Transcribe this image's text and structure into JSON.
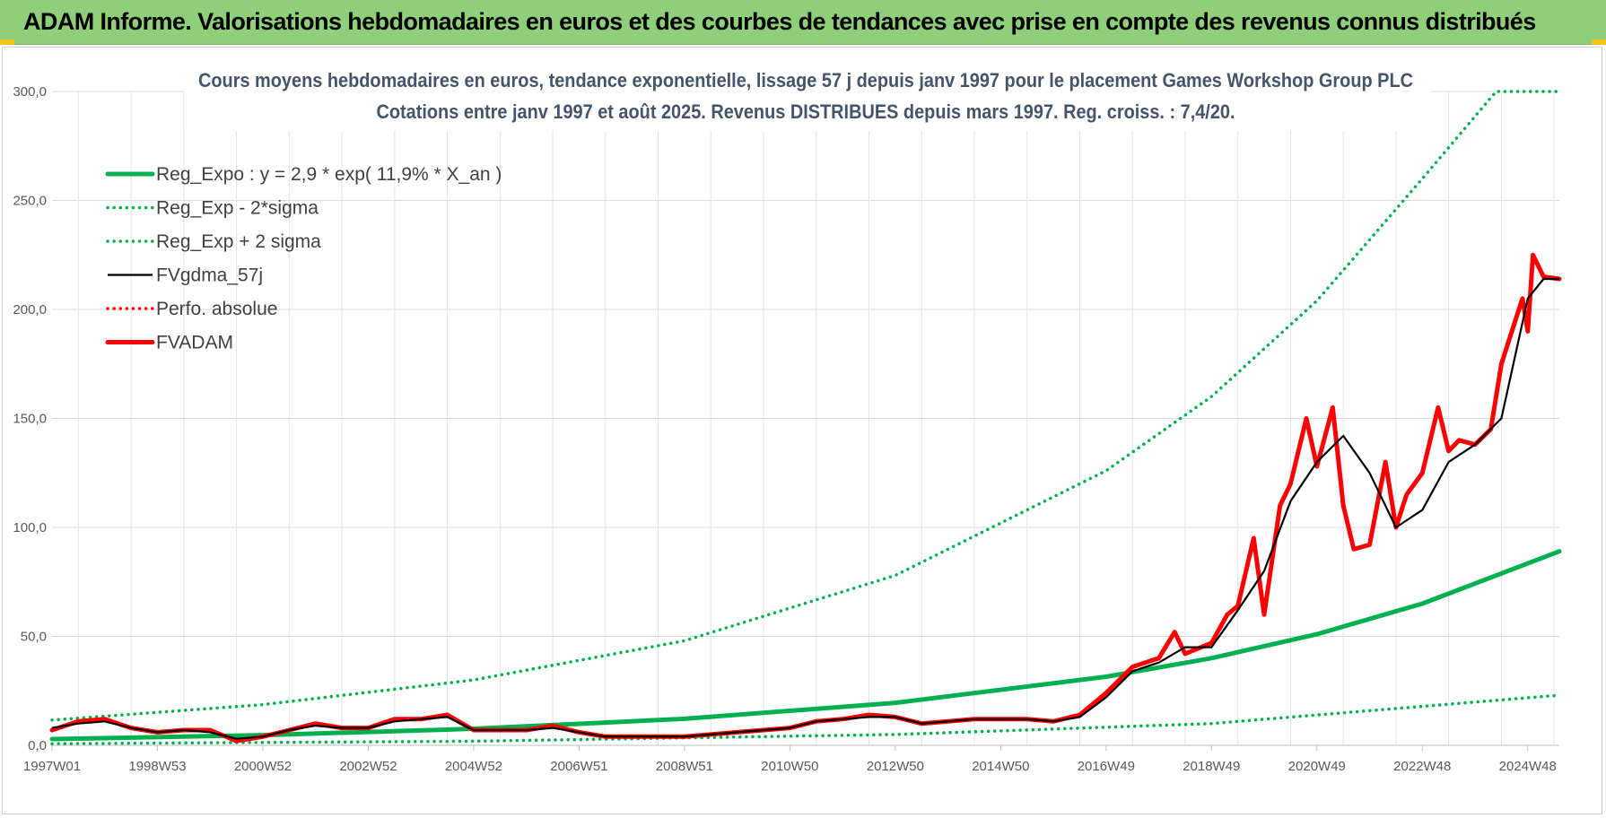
{
  "header": {
    "title": "ADAM Informe. Valorisations hebdomadaires en euros et des courbes de tendances avec prise en compte des revenus connus distribués"
  },
  "colors": {
    "banner": "#8fcf7a",
    "reg_green": "#00b050",
    "fvgdma": "#000000",
    "fvadam": "#ff0000",
    "title_text": "#44546a"
  },
  "chart_data": {
    "type": "line",
    "title_line1": "Cours moyens hebdomadaires en euros, tendance exponentielle, lissage 57 j depuis janv 1997 pour le placement Games Workshop Group PLC",
    "title_line2": "Cotations entre janv 1997 et août 2025. Revenus DISTRIBUES depuis mars 1997. Reg. croiss. : 7,4/20.",
    "xlabel": "",
    "ylabel": "",
    "ylim": [
      0,
      300
    ],
    "xlim": [
      1997.0,
      2025.6
    ],
    "y_ticks": [
      "0,0",
      "50,0",
      "100,0",
      "150,0",
      "200,0",
      "250,0",
      "300,0"
    ],
    "y_tick_values": [
      0,
      50,
      100,
      150,
      200,
      250,
      300
    ],
    "x_ticks": [
      "1997W01",
      "1998W53",
      "2000W52",
      "2002W52",
      "2004W52",
      "2006W51",
      "2008W51",
      "2010W50",
      "2012W50",
      "2014W50",
      "2016W49",
      "2018W49",
      "2020W49",
      "2022W48",
      "2024W48"
    ],
    "x_tick_values": [
      1997.0,
      1999.0,
      2001.0,
      2003.0,
      2005.0,
      2007.0,
      2009.0,
      2011.0,
      2013.0,
      2015.0,
      2017.0,
      2019.0,
      2021.0,
      2023.0,
      2025.0
    ],
    "grid": true,
    "legend_position": "top-left",
    "series": [
      {
        "name": "Reg_Expo : y = 2,9 * exp( 11,9% *  X_an )",
        "style": "solid-thick",
        "color": "#00b050",
        "x": [
          1997.0,
          2001.0,
          2005.0,
          2009.0,
          2013.0,
          2017.0,
          2019.0,
          2021.0,
          2023.0,
          2025.6
        ],
        "y": [
          2.9,
          4.7,
          7.6,
          12.2,
          19.5,
          31.5,
          40,
          51,
          65,
          89
        ]
      },
      {
        "name": "Reg_Exp - 2*sigma",
        "style": "dotted",
        "color": "#00b050",
        "x": [
          1997.0,
          2005.0,
          2013.0,
          2019.0,
          2025.6
        ],
        "y": [
          0.74,
          1.9,
          5.0,
          10,
          23
        ]
      },
      {
        "name": "Reg_Exp + 2 sigma",
        "style": "dotted",
        "color": "#00b050",
        "x": [
          1997.0,
          2001.0,
          2005.0,
          2009.0,
          2013.0,
          2017.0,
          2019.0,
          2021.0,
          2023.0,
          2024.4,
          2025.6
        ],
        "y": [
          11.6,
          18.7,
          30,
          48,
          78,
          126,
          160,
          204,
          260,
          300,
          300
        ]
      },
      {
        "name": "FVgdma_57j",
        "style": "solid-thin",
        "color": "#000000",
        "x": [
          1997.0,
          1997.5,
          1998.0,
          1998.5,
          1999.0,
          1999.5,
          2000.0,
          2000.5,
          2001.0,
          2001.5,
          2002.0,
          2002.5,
          2003.0,
          2003.5,
          2004.0,
          2004.5,
          2005.0,
          2005.5,
          2006.0,
          2006.5,
          2007.0,
          2007.5,
          2008.0,
          2008.5,
          2009.0,
          2009.5,
          2010.0,
          2010.5,
          2011.0,
          2011.5,
          2012.0,
          2012.5,
          2013.0,
          2013.5,
          2014.0,
          2014.5,
          2015.0,
          2015.5,
          2016.0,
          2016.5,
          2017.0,
          2017.5,
          2018.0,
          2018.5,
          2019.0,
          2019.5,
          2020.0,
          2020.5,
          2021.0,
          2021.5,
          2022.0,
          2022.5,
          2023.0,
          2023.5,
          2024.0,
          2024.5,
          2025.0,
          2025.3,
          2025.6
        ],
        "y": [
          8,
          10,
          11,
          8,
          6,
          7,
          6,
          3,
          4,
          7,
          9,
          8,
          8,
          11,
          12,
          13,
          7,
          7,
          7,
          8,
          6,
          4,
          4,
          4,
          4,
          5,
          6,
          7,
          8,
          11,
          12,
          13,
          13,
          10,
          11,
          12,
          12,
          12,
          11,
          13,
          22,
          34,
          38,
          45,
          45,
          62,
          80,
          112,
          130,
          142,
          125,
          100,
          108,
          130,
          138,
          150,
          205,
          214,
          214
        ]
      },
      {
        "name": "Perfo. absolue",
        "style": "dotted",
        "color": "#ff0000",
        "x": [],
        "y": []
      },
      {
        "name": "FVADAM",
        "style": "solid-thick",
        "color": "#ff0000",
        "x": [
          1997.0,
          1997.5,
          1998.0,
          1998.5,
          1999.0,
          1999.5,
          2000.0,
          2000.5,
          2001.0,
          2001.5,
          2002.0,
          2002.5,
          2003.0,
          2003.5,
          2004.0,
          2004.5,
          2005.0,
          2005.5,
          2006.0,
          2006.5,
          2007.0,
          2007.5,
          2008.0,
          2008.5,
          2009.0,
          2009.5,
          2010.0,
          2010.5,
          2011.0,
          2011.5,
          2012.0,
          2012.5,
          2013.0,
          2013.5,
          2014.0,
          2014.5,
          2015.0,
          2015.5,
          2016.0,
          2016.5,
          2017.0,
          2017.5,
          2018.0,
          2018.3,
          2018.5,
          2019.0,
          2019.3,
          2019.5,
          2019.8,
          2020.0,
          2020.3,
          2020.5,
          2020.8,
          2021.0,
          2021.3,
          2021.5,
          2021.7,
          2022.0,
          2022.3,
          2022.5,
          2022.7,
          2023.0,
          2023.3,
          2023.5,
          2023.7,
          2024.0,
          2024.3,
          2024.5,
          2024.7,
          2024.9,
          2025.0,
          2025.1,
          2025.3,
          2025.6
        ],
        "y": [
          7,
          11,
          12,
          8,
          6,
          7,
          7,
          2,
          4,
          7,
          10,
          8,
          8,
          12,
          12,
          14,
          7,
          7,
          7,
          9,
          6,
          4,
          4,
          4,
          4,
          5,
          6,
          7,
          8,
          11,
          12,
          14,
          13,
          10,
          11,
          12,
          12,
          12,
          11,
          14,
          24,
          36,
          40,
          52,
          42,
          47,
          60,
          64,
          95,
          60,
          110,
          120,
          150,
          128,
          155,
          110,
          90,
          92,
          130,
          100,
          115,
          125,
          155,
          135,
          140,
          138,
          145,
          175,
          190,
          205,
          190,
          225,
          215,
          214
        ]
      }
    ]
  }
}
